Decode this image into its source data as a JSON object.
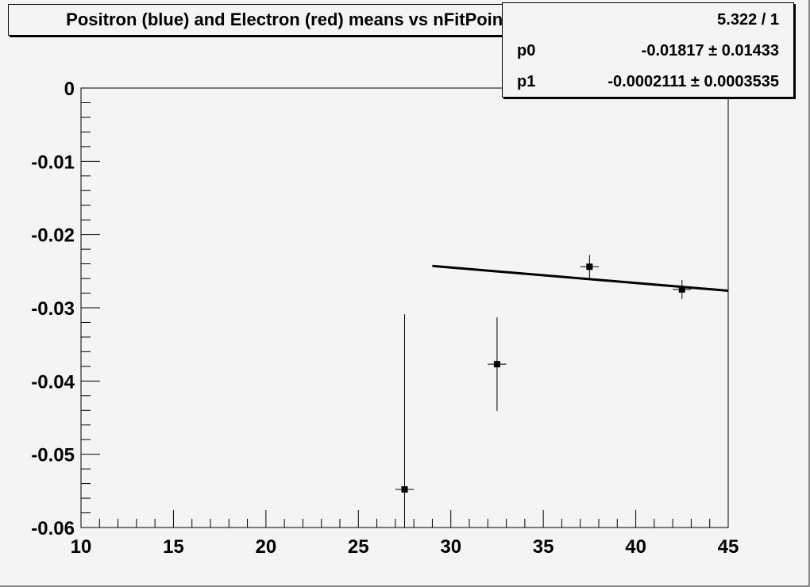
{
  "chart_data": {
    "type": "scatter",
    "title": "Positron (blue) and Electron (red) means vs nFitPoints",
    "xlabel": "",
    "ylabel": "",
    "xlim": [
      10,
      45
    ],
    "ylim": [
      -0.06,
      0
    ],
    "xticks": [
      "10",
      "15",
      "20",
      "25",
      "30",
      "35",
      "40",
      "45"
    ],
    "yticks": [
      "0",
      "-0.01",
      "-0.02",
      "-0.03",
      "-0.04",
      "-0.05",
      "-0.06"
    ],
    "points": [
      {
        "x": 27.5,
        "y": -0.0548,
        "xerr": 0.5,
        "yerr": 0.0239
      },
      {
        "x": 32.5,
        "y": -0.0377,
        "xerr": 0.5,
        "yerr": 0.0064
      },
      {
        "x": 37.5,
        "y": -0.0244,
        "xerr": 0.5,
        "yerr": 0.0016
      },
      {
        "x": 42.5,
        "y": -0.0275,
        "xerr": 0.5,
        "yerr": 0.0013
      }
    ],
    "fit": {
      "type": "pol1",
      "p0": -0.01817,
      "p1": -0.0002111,
      "xrange": [
        29,
        45
      ]
    },
    "grid": false,
    "marker_color": "#000000"
  },
  "stats": {
    "chi2_ndf": "5.322 / 1",
    "rows": [
      {
        "label": "p0",
        "value": "-0.01817 ± 0.01433"
      },
      {
        "label": "p1",
        "value": "-0.0002111 ± 0.0003535"
      }
    ]
  }
}
